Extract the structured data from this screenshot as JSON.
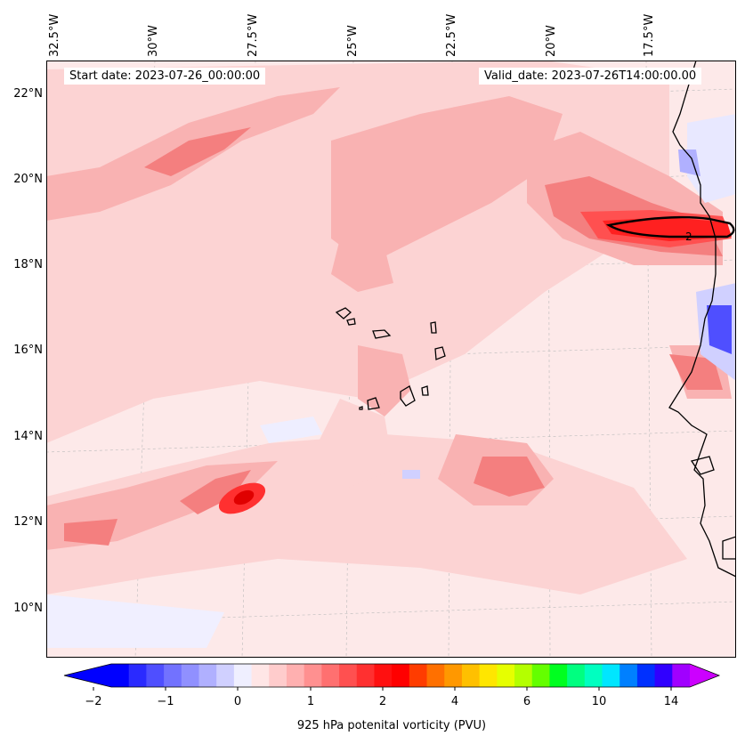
{
  "map": {
    "start_date": "Start date: 2023-07-26_00:00:00",
    "valid_date": "Valid_date: 2023-07-26T14:00:00.00",
    "contour_label": "2",
    "lon_labels": [
      "32.5°W",
      "30°W",
      "27.5°W",
      "25°W",
      "22.5°W",
      "20°W",
      "17.5°W"
    ],
    "lat_labels": [
      "22°N",
      "20°N",
      "18°N",
      "16°N",
      "14°N",
      "12°N",
      "10°N"
    ],
    "extent": {
      "lon_min": -33.5,
      "lon_max": -15.3,
      "lat_min": 8.8,
      "lat_max": 22.8
    },
    "colors": {
      "background": "#fde9e9",
      "light_pink": "#fcd3d3",
      "pink": "#f9b2b2",
      "salmon": "#f47f7f",
      "red": "#ff2020",
      "deep_red": "#ff0000",
      "light_blue": "#e8e8ff",
      "blue": "#4040ff"
    }
  },
  "colorbar": {
    "label": "925 hPa potenital vorticity (PVU)",
    "tick_labels": [
      "−2",
      "−1",
      "0",
      "1",
      "2",
      "4",
      "6",
      "10",
      "14"
    ],
    "colors": [
      "#0000ff",
      "#2a2aff",
      "#4f4fff",
      "#7272ff",
      "#9090ff",
      "#b0b0ff",
      "#d0d0ff",
      "#efefff",
      "#ffe6e6",
      "#ffcccc",
      "#ffb0b0",
      "#ff9090",
      "#ff7070",
      "#ff5050",
      "#ff3030",
      "#ff1010",
      "#ff0000",
      "#ff3c00",
      "#ff7000",
      "#ff9800",
      "#ffc000",
      "#ffe600",
      "#e6ff00",
      "#b4ff00",
      "#64ff00",
      "#00ff20",
      "#00ff80",
      "#00ffc0",
      "#00e6ff",
      "#0080ff",
      "#0030ff",
      "#3000ff",
      "#a000ff"
    ],
    "extend_low_color": "#0000ff",
    "extend_high_color": "#cc00ff"
  }
}
